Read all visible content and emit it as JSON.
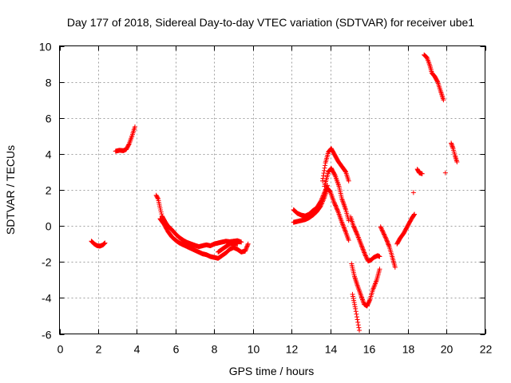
{
  "chart_data": {
    "type": "scatter",
    "title": "Day 177 of 2018, Sidereal Day-to-day VTEC variation (SDTVAR) for receiver ube1",
    "xlabel": "GPS time / hours",
    "ylabel": "SDTVAR / TECUs",
    "xlim": [
      0,
      22
    ],
    "ylim": [
      -6,
      10
    ],
    "xticks": [
      0,
      2,
      4,
      6,
      8,
      10,
      12,
      14,
      16,
      18,
      20,
      22
    ],
    "yticks": [
      -6,
      -4,
      -2,
      0,
      2,
      4,
      6,
      8,
      10
    ],
    "grid": true,
    "marker": "+",
    "color": "#ff0000",
    "series": [
      {
        "name": "SDTVAR",
        "segments": [
          [
            [
              1.65,
              -0.85
            ],
            [
              1.8,
              -1.0
            ],
            [
              1.95,
              -1.1
            ],
            [
              2.1,
              -1.12
            ],
            [
              2.25,
              -1.05
            ],
            [
              2.35,
              -0.95
            ]
          ],
          [
            [
              2.9,
              4.15
            ],
            [
              3.1,
              4.2
            ],
            [
              3.3,
              4.18
            ],
            [
              3.45,
              4.25
            ],
            [
              3.6,
              4.55
            ],
            [
              3.75,
              5.0
            ],
            [
              3.9,
              5.5
            ]
          ],
          [
            [
              5.0,
              1.7
            ],
            [
              5.1,
              1.5
            ],
            [
              5.2,
              1.0
            ],
            [
              5.3,
              0.55
            ],
            [
              5.45,
              0.25
            ],
            [
              5.6,
              0.0
            ],
            [
              5.8,
              -0.2
            ],
            [
              6.0,
              -0.45
            ],
            [
              6.2,
              -0.65
            ],
            [
              6.4,
              -0.8
            ],
            [
              6.6,
              -0.92
            ],
            [
              6.8,
              -1.0
            ],
            [
              7.0,
              -1.08
            ],
            [
              7.2,
              -1.15
            ],
            [
              7.4,
              -1.1
            ],
            [
              7.6,
              -1.05
            ],
            [
              7.8,
              -1.1
            ],
            [
              8.0,
              -1.0
            ],
            [
              8.2,
              -0.95
            ],
            [
              8.4,
              -0.9
            ],
            [
              8.6,
              -0.85
            ],
            [
              8.8,
              -0.88
            ],
            [
              9.0,
              -0.85
            ],
            [
              9.2,
              -0.82
            ],
            [
              9.4,
              -0.9
            ]
          ],
          [
            [
              5.2,
              0.4
            ],
            [
              5.4,
              0.1
            ],
            [
              5.6,
              -0.3
            ],
            [
              5.8,
              -0.6
            ],
            [
              6.0,
              -0.8
            ],
            [
              6.2,
              -0.95
            ],
            [
              6.4,
              -1.05
            ],
            [
              6.6,
              -1.15
            ],
            [
              6.8,
              -1.25
            ],
            [
              7.0,
              -1.35
            ],
            [
              7.2,
              -1.45
            ],
            [
              7.4,
              -1.55
            ],
            [
              7.6,
              -1.6
            ],
            [
              7.8,
              -1.7
            ],
            [
              8.0,
              -1.75
            ],
            [
              8.2,
              -1.8
            ],
            [
              8.4,
              -1.65
            ],
            [
              8.6,
              -1.5
            ],
            [
              8.8,
              -1.3
            ],
            [
              9.0,
              -1.2
            ],
            [
              9.2,
              -1.3
            ],
            [
              9.4,
              -1.45
            ],
            [
              9.6,
              -1.4
            ],
            [
              9.75,
              -1.0
            ]
          ],
          [
            [
              8.2,
              -1.45
            ],
            [
              8.4,
              -1.3
            ],
            [
              8.6,
              -1.15
            ],
            [
              8.8,
              -1.0
            ],
            [
              9.0,
              -0.95
            ],
            [
              9.2,
              -1.0
            ]
          ],
          [
            [
              12.1,
              0.9
            ],
            [
              12.3,
              0.7
            ],
            [
              12.5,
              0.6
            ],
            [
              12.7,
              0.55
            ],
            [
              12.9,
              0.65
            ],
            [
              13.1,
              0.85
            ],
            [
              13.3,
              1.0
            ],
            [
              13.5,
              1.35
            ],
            [
              13.7,
              1.85
            ],
            [
              13.85,
              2.25
            ]
          ],
          [
            [
              12.1,
              0.2
            ],
            [
              12.3,
              0.25
            ],
            [
              12.5,
              0.3
            ],
            [
              12.7,
              0.35
            ],
            [
              12.9,
              0.45
            ],
            [
              13.1,
              0.6
            ],
            [
              13.3,
              0.8
            ],
            [
              13.5,
              1.1
            ],
            [
              13.7,
              1.6
            ],
            [
              13.85,
              2.1
            ],
            [
              14.0,
              1.9
            ],
            [
              14.2,
              1.3
            ],
            [
              14.4,
              0.8
            ],
            [
              14.6,
              0.2
            ],
            [
              14.8,
              -0.35
            ],
            [
              14.95,
              -0.8
            ]
          ],
          [
            [
              13.6,
              2.5
            ],
            [
              13.75,
              3.5
            ],
            [
              13.9,
              4.1
            ],
            [
              14.05,
              4.3
            ],
            [
              14.2,
              4.0
            ],
            [
              14.4,
              3.6
            ],
            [
              14.6,
              3.3
            ],
            [
              14.8,
              3.0
            ],
            [
              14.95,
              2.5
            ]
          ],
          [
            [
              13.7,
              2.2
            ],
            [
              13.9,
              3.0
            ],
            [
              14.05,
              3.2
            ],
            [
              14.25,
              2.8
            ],
            [
              14.45,
              2.2
            ],
            [
              14.6,
              1.5
            ],
            [
              14.8,
              0.9
            ],
            [
              14.95,
              0.3
            ]
          ],
          [
            [
              15.05,
              0.5
            ],
            [
              15.2,
              0.0
            ],
            [
              15.4,
              -0.5
            ],
            [
              15.6,
              -1.05
            ],
            [
              15.8,
              -1.6
            ],
            [
              15.95,
              -1.95
            ],
            [
              16.1,
              -1.9
            ],
            [
              16.25,
              -1.75
            ],
            [
              16.45,
              -1.65
            ],
            [
              16.55,
              -1.7
            ]
          ],
          [
            [
              15.1,
              -2.1
            ],
            [
              15.25,
              -2.8
            ],
            [
              15.4,
              -3.3
            ],
            [
              15.6,
              -3.9
            ],
            [
              15.75,
              -4.35
            ],
            [
              15.9,
              -4.45
            ],
            [
              16.05,
              -4.1
            ],
            [
              16.2,
              -3.55
            ],
            [
              16.4,
              -3.0
            ],
            [
              16.55,
              -2.4
            ]
          ],
          [
            [
              15.15,
              -3.8
            ],
            [
              15.3,
              -4.6
            ],
            [
              15.4,
              -5.2
            ],
            [
              15.5,
              -5.8
            ]
          ],
          [
            [
              16.6,
              -0.05
            ],
            [
              16.75,
              -0.4
            ],
            [
              16.9,
              -0.75
            ],
            [
              17.05,
              -1.15
            ],
            [
              17.2,
              -1.7
            ],
            [
              17.35,
              -2.3
            ]
          ],
          [
            [
              17.45,
              -1.0
            ],
            [
              17.6,
              -0.7
            ],
            [
              17.8,
              -0.4
            ],
            [
              18.0,
              0.0
            ],
            [
              18.2,
              0.4
            ],
            [
              18.35,
              0.65
            ]
          ],
          [
            [
              18.3,
              1.85
            ]
          ],
          [
            [
              18.5,
              3.15
            ],
            [
              18.6,
              2.95
            ],
            [
              18.75,
              2.9
            ]
          ],
          [
            [
              18.85,
              9.5
            ],
            [
              19.0,
              9.35
            ],
            [
              19.15,
              8.9
            ],
            [
              19.25,
              8.5
            ],
            [
              19.4,
              8.3
            ],
            [
              19.55,
              8.0
            ],
            [
              19.7,
              7.5
            ],
            [
              19.85,
              7.0
            ]
          ],
          [
            [
              19.95,
              2.95
            ]
          ],
          [
            [
              20.25,
              4.6
            ],
            [
              20.35,
              4.3
            ],
            [
              20.45,
              3.9
            ],
            [
              20.55,
              3.55
            ]
          ]
        ]
      }
    ]
  }
}
